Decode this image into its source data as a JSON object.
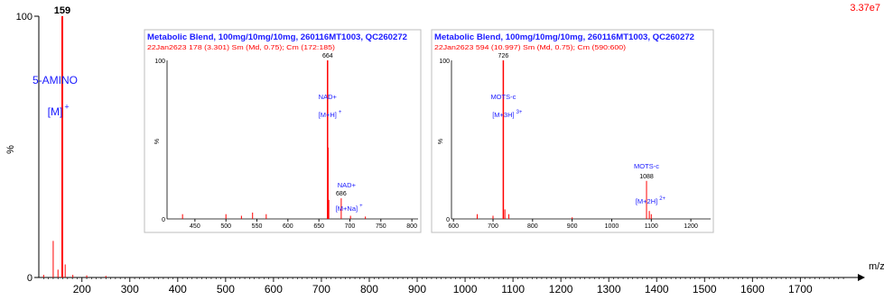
{
  "chart_data": [
    {
      "type": "line",
      "subtype": "mass-spectrum",
      "xlabel": "m/z",
      "ylabel": "%",
      "ytick_labels": [
        "0",
        "100"
      ],
      "xlim": [
        110,
        1820
      ],
      "ylim": [
        0,
        100
      ],
      "x_ticks": [
        200,
        300,
        400,
        500,
        600,
        700,
        800,
        900,
        1000,
        1100,
        1200,
        1300,
        1400,
        1500,
        1600,
        1700
      ],
      "intensity_label": "3.37e7",
      "peaks": [
        {
          "x": 120,
          "y": 1
        },
        {
          "x": 140,
          "y": 14
        },
        {
          "x": 150,
          "y": 3
        },
        {
          "x": 159,
          "y": 100,
          "label": "159"
        },
        {
          "x": 165,
          "y": 5
        },
        {
          "x": 181,
          "y": 1
        },
        {
          "x": 210,
          "y": 0.8
        },
        {
          "x": 250,
          "y": 0.6
        }
      ],
      "annotations": [
        {
          "x": 159,
          "line1": "5-AMINO",
          "line2": "[M]",
          "sup": "+"
        }
      ],
      "colors": {
        "trace": "#ff0000",
        "annotation": "#1a1aff",
        "axis": "#000000",
        "intensity": "#ff0000"
      }
    },
    {
      "type": "line",
      "subtype": "mass-spectrum-inset",
      "title": "Metabolic Blend, 100mg/10mg/10mg, 260116MT1003, QC260272",
      "subtitle": "22Jan2623  178 (3.301) Sm (Md, 0.75); Cm (172:185)",
      "ylabel": "%",
      "ytick_labels": [
        "0",
        "100"
      ],
      "xlim": [
        405,
        810
      ],
      "ylim": [
        0,
        100
      ],
      "x_ticks": [
        450,
        500,
        550,
        600,
        650,
        700,
        750,
        800
      ],
      "tick_labels": [
        "450",
        "500",
        "550",
        "600",
        "650",
        "700",
        "750",
        "800"
      ],
      "peaks": [
        {
          "x": 430,
          "y": 3
        },
        {
          "x": 500,
          "y": 3
        },
        {
          "x": 525,
          "y": 2
        },
        {
          "x": 543,
          "y": 4
        },
        {
          "x": 565,
          "y": 3
        },
        {
          "x": 664,
          "y": 100,
          "label": "664"
        },
        {
          "x": 665,
          "y": 45
        },
        {
          "x": 666,
          "y": 12
        },
        {
          "x": 686,
          "y": 13,
          "label": "686"
        },
        {
          "x": 701,
          "y": 2
        },
        {
          "x": 725,
          "y": 1.5
        }
      ],
      "annotations": [
        {
          "x": 664,
          "line1": "NAD+",
          "line2": "[M+H]",
          "sup": "+"
        },
        {
          "x": 686,
          "line1": "NAD+",
          "line2": "[M+Na]",
          "sup": "+"
        }
      ]
    },
    {
      "type": "line",
      "subtype": "mass-spectrum-inset",
      "title": "Metabolic Blend, 100mg/10mg/10mg, 260116MT1003, QC260272",
      "subtitle": "22Jan2623  594 (10.997) Sm (Md, 0.75); Cm (590:600)",
      "ylabel": "%",
      "ytick_labels": [
        "0",
        "100"
      ],
      "xlim": [
        595,
        1250
      ],
      "ylim": [
        0,
        100
      ],
      "x_ticks": [
        600,
        700,
        800,
        900,
        1000,
        1100,
        1200
      ],
      "tick_labels": [
        "600",
        "700",
        "800",
        "900",
        "1000",
        "1100",
        "1200"
      ],
      "peaks": [
        {
          "x": 660,
          "y": 3
        },
        {
          "x": 700,
          "y": 2
        },
        {
          "x": 726,
          "y": 100,
          "label": "726"
        },
        {
          "x": 730,
          "y": 6
        },
        {
          "x": 740,
          "y": 3
        },
        {
          "x": 900,
          "y": 1
        },
        {
          "x": 1088,
          "y": 24,
          "label": "1088"
        },
        {
          "x": 1095,
          "y": 5
        },
        {
          "x": 1100,
          "y": 3
        }
      ],
      "annotations": [
        {
          "x": 726,
          "line1": "MOTS-c",
          "line2": "[M+3H]",
          "sup": "3+"
        },
        {
          "x": 1088,
          "line1": "MOTS-c",
          "line2": "[M+2H]",
          "sup": "2+"
        }
      ]
    }
  ]
}
